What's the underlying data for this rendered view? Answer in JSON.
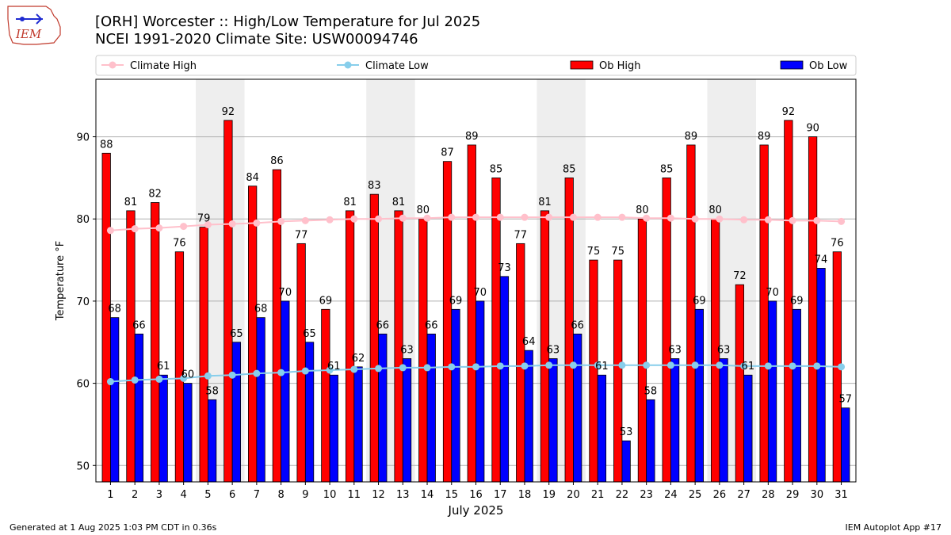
{
  "header": {
    "title_line1": "[ORH] Worcester :: High/Low Temperature for Jul 2025",
    "title_line2": "NCEI 1991-2020 Climate Site: USW00094746",
    "logo_text": "IEM"
  },
  "footer": {
    "generated": "Generated at 1 Aug 2025 1:03 PM CDT in 0.36s",
    "app": "IEM Autoplot App #17"
  },
  "colors": {
    "ob_high": "#ff0000",
    "ob_low": "#0000ff",
    "climate_high": "#ffc0cb",
    "climate_low": "#87ceeb",
    "weekend_shade": "#eeeeee",
    "grid": "#b0b0b0"
  },
  "chart_data": {
    "type": "bar",
    "xlabel": "July 2025",
    "ylabel": "Temperature °F",
    "ylim": [
      48,
      97
    ],
    "yticks": [
      50,
      60,
      70,
      80,
      90
    ],
    "grid": true,
    "legend_position": "top",
    "categories": [
      "1",
      "2",
      "3",
      "4",
      "5",
      "6",
      "7",
      "8",
      "9",
      "10",
      "11",
      "12",
      "13",
      "14",
      "15",
      "16",
      "17",
      "18",
      "19",
      "20",
      "21",
      "22",
      "23",
      "24",
      "25",
      "26",
      "27",
      "28",
      "29",
      "30",
      "31"
    ],
    "weekend_bands": [
      [
        5,
        6
      ],
      [
        12,
        13
      ],
      [
        19,
        20
      ],
      [
        26,
        27
      ]
    ],
    "legend": [
      "Climate High",
      "Climate Low",
      "Ob High",
      "Ob Low"
    ],
    "series": [
      {
        "name": "Ob High",
        "kind": "bar",
        "values": [
          88,
          81,
          82,
          76,
          79,
          92,
          84,
          86,
          77,
          69,
          81,
          83,
          81,
          80,
          87,
          89,
          85,
          77,
          81,
          85,
          75,
          75,
          80,
          85,
          89,
          80,
          72,
          89,
          92,
          90,
          76
        ]
      },
      {
        "name": "Ob Low",
        "kind": "bar",
        "values": [
          68,
          66,
          61,
          60,
          58,
          65,
          68,
          70,
          65,
          61,
          62,
          66,
          63,
          66,
          69,
          70,
          73,
          64,
          63,
          66,
          61,
          53,
          58,
          63,
          69,
          63,
          61,
          70,
          69,
          74,
          57
        ]
      },
      {
        "name": "Climate High",
        "kind": "line",
        "values": [
          78.6,
          78.8,
          78.9,
          79.1,
          79.3,
          79.4,
          79.5,
          79.7,
          79.8,
          79.9,
          80.0,
          80.0,
          80.1,
          80.1,
          80.2,
          80.2,
          80.2,
          80.2,
          80.2,
          80.2,
          80.2,
          80.2,
          80.1,
          80.1,
          80.0,
          80.0,
          79.9,
          79.9,
          79.8,
          79.8,
          79.7
        ]
      },
      {
        "name": "Climate Low",
        "kind": "line",
        "values": [
          60.2,
          60.4,
          60.5,
          60.6,
          60.9,
          61.0,
          61.2,
          61.3,
          61.5,
          61.6,
          61.7,
          61.8,
          61.9,
          61.9,
          62.0,
          62.0,
          62.1,
          62.1,
          62.2,
          62.2,
          62.2,
          62.2,
          62.2,
          62.2,
          62.2,
          62.2,
          62.1,
          62.1,
          62.1,
          62.1,
          62.0
        ]
      }
    ]
  }
}
